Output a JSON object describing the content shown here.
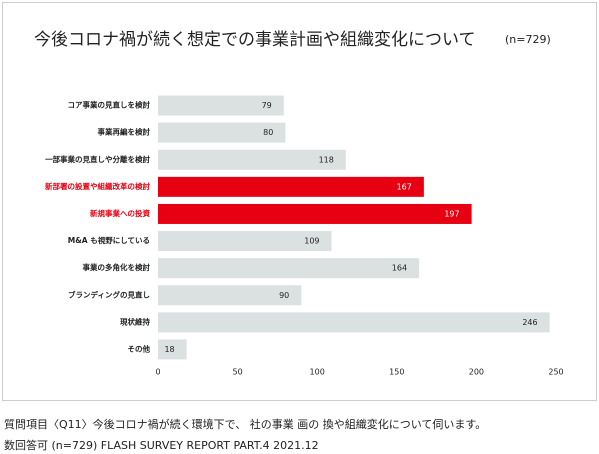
{
  "chart_data": {
    "type": "bar",
    "orientation": "horizontal",
    "title": "今後コロナ禍が続く想定での事業計画や組織変化について",
    "subtitle": "(n=729)",
    "categories": [
      "コア事業の見直しを検討",
      "事業再編を検討",
      "一部事業の見直しや分離を検討",
      "新部署の設置や組織改革の検討",
      "新規事業への投資",
      "M&A も視野にしている",
      "事業の多角化を検討",
      "ブランディングの見直し",
      "現状維持",
      "その他"
    ],
    "values": [
      79,
      80,
      118,
      167,
      197,
      109,
      164,
      90,
      246,
      18
    ],
    "color": "#dbe1e1",
    "colors": [
      "#dbe1e1",
      "#dbe1e1",
      "#dbe1e1",
      "#e60012",
      "#e60012",
      "#dbe1e1",
      "#dbe1e1",
      "#dbe1e1",
      "#dbe1e1",
      "#dbe1e1"
    ],
    "xlim": [
      0,
      250
    ],
    "xticks": [
      0,
      50,
      100,
      150,
      200,
      250
    ],
    "grid": false
  },
  "footer": {
    "line1": "質問項目〈Q11〉今後コロナ禍が続く環境下で、 社の事業 画の 換や組織変化について伺います。",
    "line2": "数回答可 (n=729) FLASH SURVEY REPORT PART.4 2021.12"
  }
}
